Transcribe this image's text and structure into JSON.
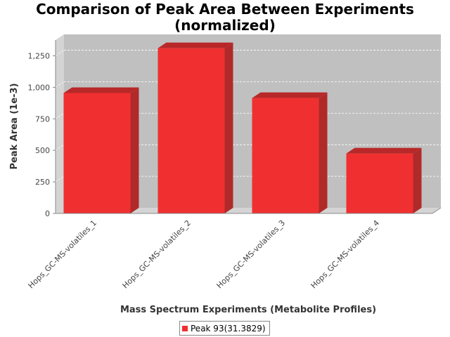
{
  "chart_data": {
    "type": "bar",
    "title": "Comparison of Peak Area Between Experiments",
    "subtitle": "(normalized)",
    "xlabel": "Mass Spectrum Experiments (Metabolite Profiles)",
    "ylabel": "Peak Area (1e-3)",
    "categories": [
      "Hops_GC-MS-volatiles_1",
      "Hops_GC-MS-volatiles_2",
      "Hops_GC-MS-volatiles_3",
      "Hops_GC-MS-volatiles_4"
    ],
    "series": [
      {
        "name": "Peak 93(31.3829)",
        "values": [
          955,
          1310,
          915,
          475
        ]
      }
    ],
    "ylim": [
      0,
      1375
    ],
    "yticks": [
      0,
      250,
      500,
      750,
      1000,
      1250
    ],
    "ytick_labels": [
      "0",
      "250",
      "500",
      "750",
      "1,000",
      "1,250"
    ],
    "grid": true,
    "legend_position": "bottom",
    "colors": {
      "bar": "#f03030",
      "bar_top": "#b82828",
      "bar_side": "#b02a2a",
      "plot_back": "#c0c0c0",
      "plot_wall": "#d4d4d4",
      "gridline": "#ffffff"
    }
  }
}
